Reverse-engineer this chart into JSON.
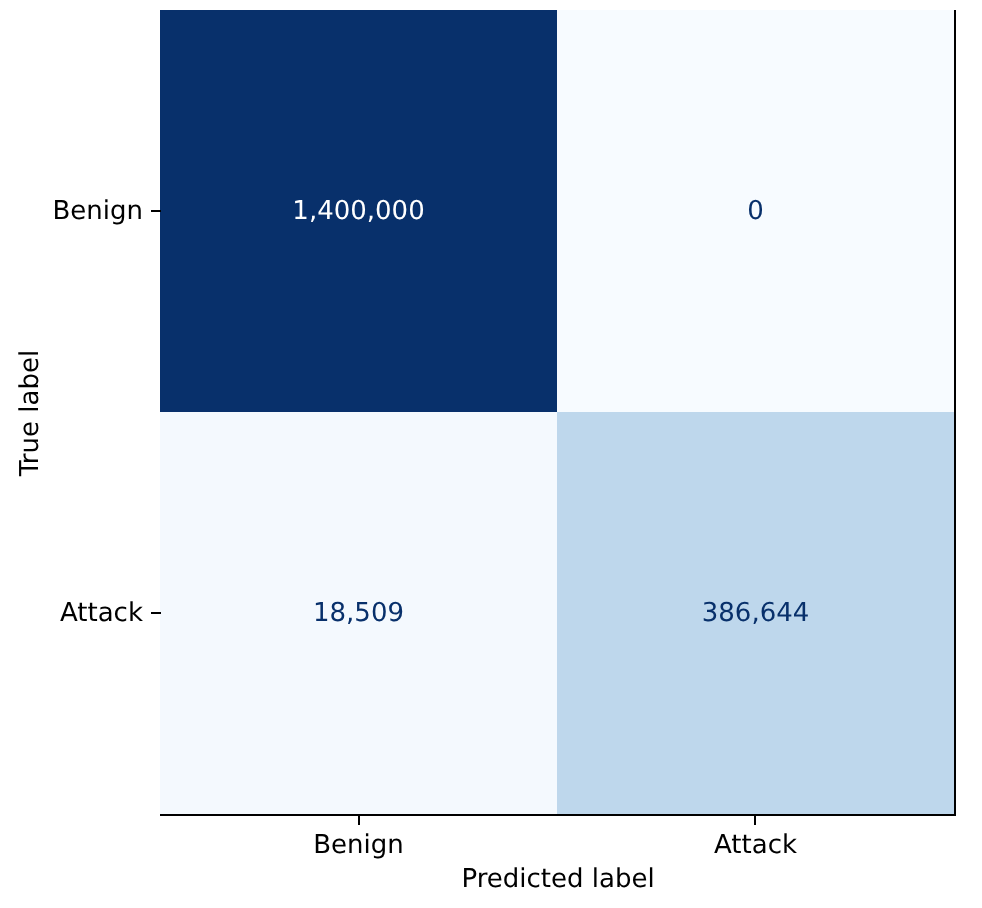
{
  "chart_data": {
    "type": "heatmap",
    "xlabel": "Predicted label",
    "ylabel": "True label",
    "categories": [
      "Benign",
      "Attack"
    ],
    "y_categories": [
      "Benign",
      "Attack"
    ],
    "cells": [
      [
        1400000,
        0
      ],
      [
        18509,
        386644
      ]
    ],
    "cell_labels": [
      [
        "1,400,000",
        "0"
      ],
      [
        "18,509",
        "386,644"
      ]
    ]
  }
}
